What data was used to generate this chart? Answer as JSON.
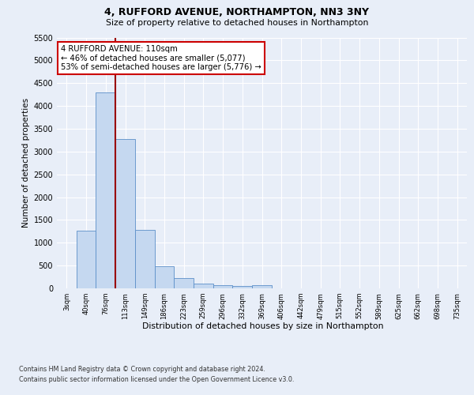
{
  "title_line1": "4, RUFFORD AVENUE, NORTHAMPTON, NN3 3NY",
  "title_line2": "Size of property relative to detached houses in Northampton",
  "xlabel": "Distribution of detached houses by size in Northampton",
  "ylabel": "Number of detached properties",
  "categories": [
    "3sqm",
    "40sqm",
    "76sqm",
    "113sqm",
    "149sqm",
    "186sqm",
    "223sqm",
    "259sqm",
    "296sqm",
    "332sqm",
    "369sqm",
    "406sqm",
    "442sqm",
    "479sqm",
    "515sqm",
    "552sqm",
    "589sqm",
    "625sqm",
    "662sqm",
    "698sqm",
    "735sqm"
  ],
  "values": [
    0,
    1270,
    4300,
    3280,
    1280,
    480,
    230,
    105,
    70,
    55,
    70,
    0,
    0,
    0,
    0,
    0,
    0,
    0,
    0,
    0,
    0
  ],
  "bar_color": "#c5d8f0",
  "bar_edge_color": "#5b8fc9",
  "vline_color": "#990000",
  "ylim": [
    0,
    5500
  ],
  "yticks": [
    0,
    500,
    1000,
    1500,
    2000,
    2500,
    3000,
    3500,
    4000,
    4500,
    5000,
    5500
  ],
  "annotation_text": "4 RUFFORD AVENUE: 110sqm\n← 46% of detached houses are smaller (5,077)\n53% of semi-detached houses are larger (5,776) →",
  "annotation_box_color": "#ffffff",
  "annotation_box_edge": "#cc0000",
  "footer_line1": "Contains HM Land Registry data © Crown copyright and database right 2024.",
  "footer_line2": "Contains public sector information licensed under the Open Government Licence v3.0.",
  "background_color": "#e8eef8",
  "plot_bg_color": "#e8eef8",
  "grid_color": "#ffffff",
  "vline_pos": 2.5
}
